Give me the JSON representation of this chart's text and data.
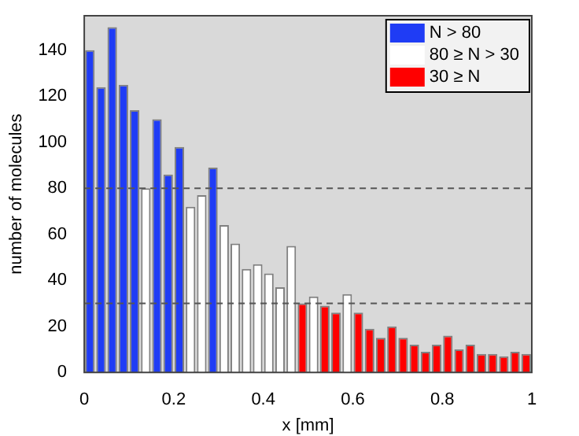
{
  "chart_data": {
    "type": "histogram",
    "xlabel": "x [mm]",
    "ylabel": "number of molecules",
    "bins": [
      0,
      0.025,
      0.05,
      0.075,
      0.1,
      0.125,
      0.15,
      0.175,
      0.2,
      0.225,
      0.25,
      0.275,
      0.3,
      0.325,
      0.35,
      0.375,
      0.4,
      0.425,
      0.45,
      0.475,
      0.5,
      0.525,
      0.55,
      0.575,
      0.6,
      0.625,
      0.65,
      0.675,
      0.7,
      0.725,
      0.75,
      0.775,
      0.8,
      0.825,
      0.85,
      0.875,
      0.9,
      0.925,
      0.95,
      0.975,
      1
    ],
    "series": [
      {
        "name": "N > 80",
        "color": "#1f3cf5",
        "values": [
          140,
          124,
          150,
          125,
          114,
          null,
          110,
          86,
          98,
          null,
          null,
          89,
          null,
          null,
          null,
          null,
          null,
          null,
          null,
          null,
          null,
          null,
          null,
          null,
          null,
          null,
          null,
          null,
          null,
          null,
          null,
          null,
          null,
          null,
          null,
          null,
          null,
          null,
          null,
          null
        ]
      },
      {
        "name": "80 ≥ N > 30",
        "color": "#ffffff",
        "values": [
          null,
          null,
          null,
          null,
          null,
          80,
          null,
          null,
          null,
          72,
          77,
          null,
          64,
          56,
          45,
          47,
          43,
          37,
          55,
          null,
          33,
          null,
          null,
          34,
          null,
          null,
          null,
          null,
          null,
          null,
          null,
          null,
          null,
          null,
          null,
          null,
          null,
          null,
          null,
          null
        ]
      },
      {
        "name": "30 ≥ N",
        "color": "#ff0000",
        "values": [
          null,
          null,
          null,
          null,
          null,
          null,
          null,
          null,
          null,
          null,
          null,
          null,
          null,
          null,
          null,
          null,
          null,
          null,
          null,
          30,
          null,
          29,
          26,
          null,
          26,
          19,
          15,
          20,
          15,
          12,
          9,
          12,
          16,
          10,
          12,
          8,
          8,
          7,
          9,
          8
        ]
      }
    ],
    "xlim": [
      0,
      1
    ],
    "xticks": [
      0,
      0.2,
      0.4,
      0.6,
      0.8,
      1
    ],
    "ylim": [
      0,
      155
    ],
    "yticks": [
      0,
      20,
      40,
      60,
      80,
      100,
      120,
      140
    ],
    "ref_lines": [
      {
        "axis": "y",
        "value": 80,
        "line_style": "dashed"
      },
      {
        "axis": "y",
        "value": 30,
        "line_style": "dashed"
      }
    ],
    "grid": false,
    "legend": "top right"
  }
}
